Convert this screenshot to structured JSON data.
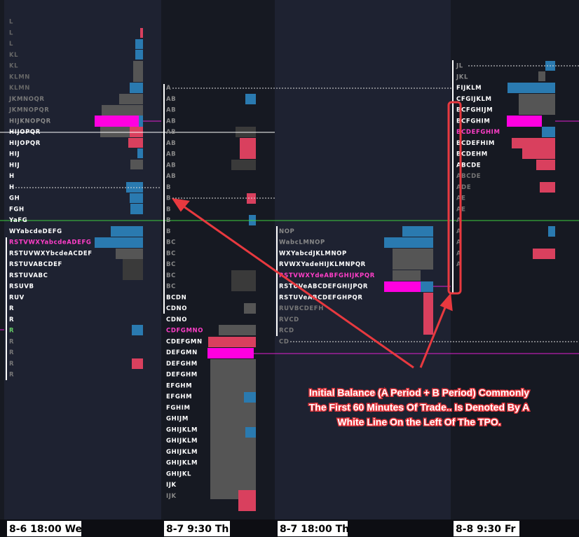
{
  "columns": [
    {
      "date": "8-6  18:00 We",
      "rows": [
        {
          "text": "L",
          "color": "#666"
        },
        {
          "text": "L",
          "color": "#666"
        },
        {
          "text": "L",
          "color": "#666"
        },
        {
          "text": "KL",
          "color": "#666"
        },
        {
          "text": "KL",
          "color": "#666"
        },
        {
          "text": "KLMN",
          "color": "#666"
        },
        {
          "text": "KLMN",
          "color": "#666"
        },
        {
          "text": "JKMNOQR",
          "color": "#777"
        },
        {
          "text": "JKMNOPQR",
          "color": "#777"
        },
        {
          "text": "HIJKNOPQR",
          "color": "#888"
        },
        {
          "text": "HIJOPQR",
          "color": "#ffffff"
        },
        {
          "text": "HIJOPQR",
          "color": "#ffffff"
        },
        {
          "text": "HIJ",
          "color": "#ffffff"
        },
        {
          "text": "HIJ",
          "color": "#ffffff"
        },
        {
          "text": "H",
          "color": "#ffffff"
        },
        {
          "text": "H",
          "color": "#ffffff"
        },
        {
          "text": "GH",
          "color": "#ffffff"
        },
        {
          "text": "FGH",
          "color": "#ffffff"
        },
        {
          "text": "YaFG",
          "color": "#ffffff"
        },
        {
          "text": "WYabcdeDEFG",
          "color": "#ffffff"
        },
        {
          "text": "RSTVWXYabcdeADEFG",
          "color": "#ff3ec8"
        },
        {
          "text": "RSTUVWXYbcdeACDEF",
          "color": "#ffffff"
        },
        {
          "text": "RSTUVABCDEF",
          "color": "#ffffff"
        },
        {
          "text": "RSTUVABC",
          "color": "#ffffff"
        },
        {
          "text": "RSUVB",
          "color": "#ffffff"
        },
        {
          "text": "RUV",
          "color": "#ffffff"
        },
        {
          "text": "R",
          "color": "#ffffff"
        },
        {
          "text": "R",
          "color": "#ffffff"
        },
        {
          "text": "R",
          "color": "#6c6"
        },
        {
          "text": "R",
          "color": "#777"
        },
        {
          "text": "R",
          "color": "#777"
        },
        {
          "text": "R",
          "color": "#777"
        },
        {
          "text": "R",
          "color": "#777"
        }
      ]
    },
    {
      "date": "8-7  9:30 Th",
      "rows": [
        {
          "text": "A",
          "color": "#888"
        },
        {
          "text": "AB",
          "color": "#888"
        },
        {
          "text": "AB",
          "color": "#888"
        },
        {
          "text": "AB",
          "color": "#888"
        },
        {
          "text": "AB",
          "color": "#888"
        },
        {
          "text": "AB",
          "color": "#888"
        },
        {
          "text": "AB",
          "color": "#888"
        },
        {
          "text": "AB",
          "color": "#888"
        },
        {
          "text": "AB",
          "color": "#888"
        },
        {
          "text": "B",
          "color": "#888"
        },
        {
          "text": "B",
          "color": "#888"
        },
        {
          "text": "B",
          "color": "#888"
        },
        {
          "text": "B",
          "color": "#888"
        },
        {
          "text": "B",
          "color": "#888"
        },
        {
          "text": "BC",
          "color": "#888"
        },
        {
          "text": "BC",
          "color": "#888"
        },
        {
          "text": "BC",
          "color": "#888"
        },
        {
          "text": "BC",
          "color": "#888"
        },
        {
          "text": "BC",
          "color": "#888"
        },
        {
          "text": "BCDN",
          "color": "#ffffff"
        },
        {
          "text": "CDNO",
          "color": "#ffffff"
        },
        {
          "text": "CDNO",
          "color": "#ffffff"
        },
        {
          "text": "CDFGMNO",
          "color": "#ff3ec8"
        },
        {
          "text": "CDEFGMN",
          "color": "#ffffff"
        },
        {
          "text": "DEFGMN",
          "color": "#ffffff"
        },
        {
          "text": "DEFGHM",
          "color": "#ffffff"
        },
        {
          "text": "DEFGHM",
          "color": "#ffffff"
        },
        {
          "text": "EFGHM",
          "color": "#ffffff"
        },
        {
          "text": "EFGHM",
          "color": "#ffffff"
        },
        {
          "text": "FGHIM",
          "color": "#ffffff"
        },
        {
          "text": "GHIJM",
          "color": "#ffffff"
        },
        {
          "text": "GHIJKLM",
          "color": "#ffffff"
        },
        {
          "text": "GHIJKLM",
          "color": "#ffffff"
        },
        {
          "text": "GHIJKLM",
          "color": "#ffffff"
        },
        {
          "text": "GHIJKLM",
          "color": "#ffffff"
        },
        {
          "text": "GHIJKL",
          "color": "#ffffff"
        },
        {
          "text": "IJK",
          "color": "#ffffff"
        },
        {
          "text": "IJK",
          "color": "#888"
        }
      ]
    },
    {
      "date": "8-7  18:00 Th",
      "rows": [
        {
          "text": "NOP",
          "color": "#888"
        },
        {
          "text": "WabcLMNOP",
          "color": "#888"
        },
        {
          "text": "WXYabcdJKLMNOP",
          "color": "#ffffff"
        },
        {
          "text": "RVWXYadeHIJKLMNPQR",
          "color": "#ffffff"
        },
        {
          "text": "RSTVWXYdeABFGHIJKPQR",
          "color": "#ff3ec8"
        },
        {
          "text": "RSTUVeABCDEFGHIJPQR",
          "color": "#ffffff"
        },
        {
          "text": "RSTUVeABCDEFGHPQR",
          "color": "#ffffff"
        },
        {
          "text": "RUVBCDEFH",
          "color": "#777"
        },
        {
          "text": "RVCD",
          "color": "#777"
        },
        {
          "text": "RCD",
          "color": "#777"
        },
        {
          "text": "CD",
          "color": "#777"
        }
      ]
    },
    {
      "date": "8-8  9:30 Fr",
      "rows": [
        {
          "text": "JL",
          "color": "#888"
        },
        {
          "text": "JKL",
          "color": "#888"
        },
        {
          "text": "FIJKLM",
          "color": "#ffffff"
        },
        {
          "text": "CFGIJKLM",
          "color": "#ffffff"
        },
        {
          "text": "BCFGHIJM",
          "color": "#ffffff"
        },
        {
          "text": "BCFGHIM",
          "color": "#ffffff"
        },
        {
          "text": "BCDEFGHIM",
          "color": "#ff3ec8"
        },
        {
          "text": "BCDEFHIM",
          "color": "#ffffff"
        },
        {
          "text": "BCDEHM",
          "color": "#ffffff"
        },
        {
          "text": "ABCDE",
          "color": "#ffffff"
        },
        {
          "text": "ABCDE",
          "color": "#777"
        },
        {
          "text": "ADE",
          "color": "#777"
        },
        {
          "text": "AE",
          "color": "#777"
        },
        {
          "text": "AE",
          "color": "#777"
        },
        {
          "text": "A",
          "color": "#777"
        },
        {
          "text": "A",
          "color": "#777"
        },
        {
          "text": "A",
          "color": "#777"
        },
        {
          "text": "A",
          "color": "#777"
        },
        {
          "text": "A",
          "color": "#777"
        }
      ]
    }
  ],
  "annotation": {
    "lines": [
      "Initial Balance (A Period + B Period) Commonly",
      "The First 60 Minutes Of Trade.. Is Denoted By A",
      "White Line On the Left Of The TPO."
    ]
  }
}
